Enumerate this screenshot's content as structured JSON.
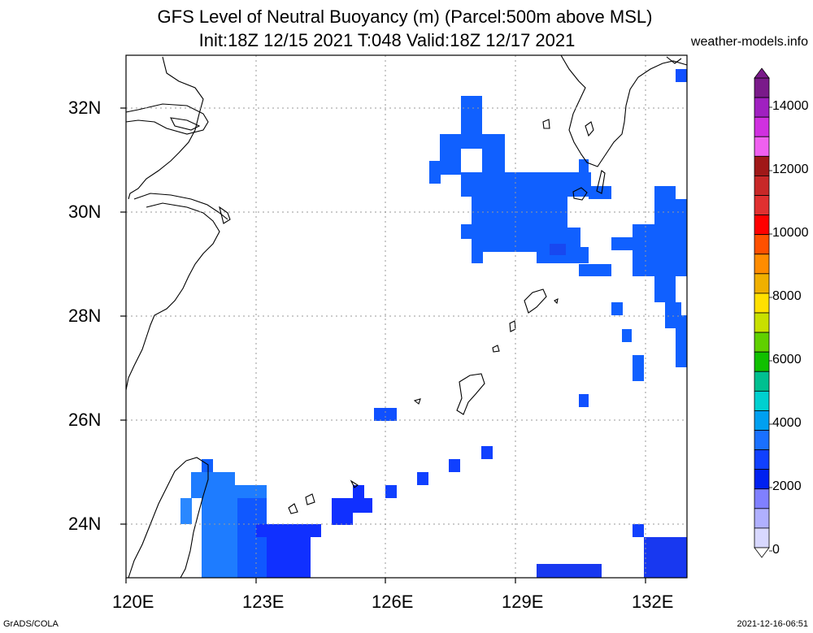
{
  "header": {
    "title_line1": "GFS Level of Neutral Buoyancy (m) (Parcel:500m above MSL)",
    "title_line2": "Init:18Z 12/15 2021 T:048 Valid:18Z 12/17 2021",
    "site": "weather-models.info"
  },
  "footer": {
    "left": "GrADS/COLA",
    "right": "2021-12-16-06:51"
  },
  "axes": {
    "lat_labels": [
      "32N",
      "30N",
      "28N",
      "26N",
      "24N"
    ],
    "lon_labels": [
      "120E",
      "123E",
      "126E",
      "129E",
      "132E"
    ]
  },
  "colorbar": {
    "labels": [
      "14000",
      "12000",
      "10000",
      "8000",
      "6000",
      "4000",
      "2000",
      "0"
    ],
    "colors": [
      "#7a1a8a",
      "#a020c0",
      "#d030e0",
      "#f060f0",
      "#a01818",
      "#c82828",
      "#e03030",
      "#ff0000",
      "#ff5000",
      "#ff8c00",
      "#f0b000",
      "#ffe000",
      "#c8e000",
      "#60d000",
      "#10c000",
      "#00c090",
      "#00d0d0",
      "#00a0f0",
      "#1a70ff",
      "#1040ff",
      "#0020f0",
      "#8080ff",
      "#b0b0ff",
      "#d8d8ff"
    ]
  },
  "map": {
    "grid_lat": [
      32,
      30,
      28,
      26,
      24
    ],
    "grid_lon": [
      120,
      123,
      126,
      129,
      132
    ]
  }
}
